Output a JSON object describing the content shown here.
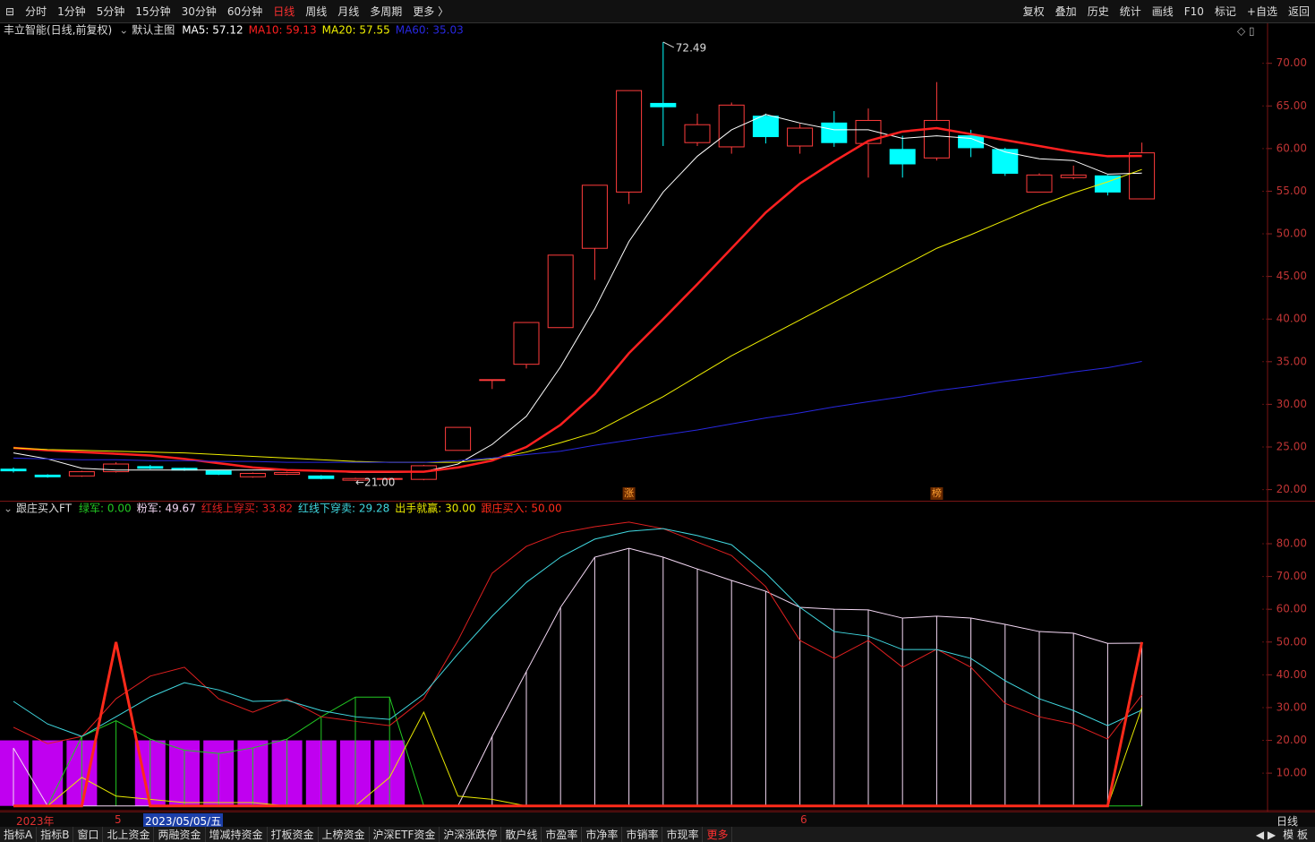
{
  "toolbar": {
    "periods": [
      "分时",
      "1分钟",
      "5分钟",
      "15分钟",
      "30分钟",
      "60分钟",
      "日线",
      "周线",
      "月线",
      "多周期",
      "更多 〉"
    ],
    "tools": [
      "复权",
      "叠加",
      "历史",
      "统计",
      "画线",
      "F10",
      "标记",
      "+自选",
      "返回"
    ]
  },
  "chart_data": [
    {
      "type": "candlestick",
      "title": "丰立智能(日线,前复权)",
      "subtitle": "默认主图",
      "up_color": "#ff3c3c",
      "down_color": "#00ffff",
      "open": [
        22.4,
        21.7,
        21.6,
        22.1,
        22.7,
        22.5,
        22.2,
        21.5,
        21.8,
        21.6,
        21.1,
        21.2,
        21.2,
        24.6,
        32.9,
        34.7,
        39.0,
        48.3,
        54.9,
        65.3,
        60.7,
        60.2,
        63.8,
        60.3,
        63.0,
        60.6,
        59.9,
        58.9,
        61.5,
        59.9,
        54.9,
        56.6,
        56.8,
        54.1
      ],
      "close": [
        22.2,
        21.5,
        22.1,
        23.0,
        22.5,
        22.3,
        21.8,
        21.9,
        22.0,
        21.3,
        21.3,
        21.3,
        22.8,
        27.3,
        32.9,
        39.6,
        47.5,
        55.7,
        66.8,
        64.9,
        62.8,
        65.1,
        61.4,
        62.4,
        60.7,
        63.3,
        58.2,
        63.3,
        60.1,
        57.1,
        56.9,
        56.9,
        54.9,
        59.5
      ],
      "high": [
        22.6,
        21.8,
        22.2,
        23.2,
        22.9,
        22.6,
        22.3,
        22.0,
        22.1,
        21.7,
        21.4,
        21.4,
        22.9,
        27.3,
        32.9,
        39.6,
        47.5,
        55.7,
        66.8,
        72.49,
        64.1,
        65.4,
        64.1,
        62.9,
        64.4,
        64.7,
        61.5,
        67.8,
        62.2,
        60.1,
        57.1,
        58.0,
        56.9,
        60.7
      ],
      "low": [
        22.0,
        21.4,
        21.5,
        22.0,
        22.4,
        22.2,
        21.7,
        21.4,
        21.7,
        21.2,
        21.0,
        21.1,
        21.1,
        24.6,
        31.8,
        34.2,
        39.0,
        44.6,
        53.5,
        60.3,
        60.3,
        59.4,
        60.6,
        59.4,
        60.2,
        56.6,
        56.6,
        58.6,
        59.0,
        56.8,
        54.9,
        56.4,
        54.5,
        54.1
      ],
      "series": [
        {
          "name": "MA5: 57.12",
          "color": "#ffffff",
          "width": 1,
          "values": [
            24.3,
            23.6,
            22.5,
            22.3,
            22.3,
            22.3,
            22.3,
            22.3,
            22.3,
            22.2,
            22.0,
            22.0,
            22.1,
            23.0,
            25.3,
            28.6,
            34.4,
            41.2,
            49.1,
            54.9,
            59.1,
            62.2,
            64.0,
            63.0,
            62.2,
            62.2,
            61.2,
            61.5,
            61.2,
            59.6,
            58.8,
            58.6,
            57.0,
            57.12
          ]
        },
        {
          "name": "MA10: 59.13",
          "color": "#ff2020",
          "width": 2.5,
          "values": [
            24.9,
            24.6,
            24.4,
            24.2,
            24.0,
            23.6,
            23.1,
            22.6,
            22.3,
            22.2,
            22.1,
            22.1,
            22.1,
            22.6,
            23.4,
            25.0,
            27.6,
            31.2,
            36.0,
            40.0,
            44.1,
            48.3,
            52.5,
            55.9,
            58.5,
            60.9,
            62.0,
            62.4,
            61.7,
            61.0,
            60.3,
            59.6,
            59.1,
            59.13
          ]
        },
        {
          "name": "MA20: 57.55",
          "color": "#f0f000",
          "width": 1,
          "values": [
            24.9,
            24.7,
            24.6,
            24.5,
            24.4,
            24.3,
            24.1,
            23.9,
            23.7,
            23.5,
            23.3,
            23.2,
            23.2,
            23.2,
            23.6,
            24.4,
            25.5,
            26.7,
            28.8,
            30.9,
            33.3,
            35.7,
            37.8,
            39.9,
            42.0,
            44.1,
            46.2,
            48.3,
            49.9,
            51.6,
            53.3,
            54.8,
            56.1,
            57.55
          ]
        },
        {
          "name": "MA60: 35.03",
          "color": "#2828e0",
          "width": 1,
          "values": [
            23.7,
            23.6,
            23.5,
            23.5,
            23.4,
            23.4,
            23.3,
            23.3,
            23.2,
            23.2,
            23.2,
            23.2,
            23.2,
            23.4,
            23.7,
            24.1,
            24.5,
            25.2,
            25.8,
            26.4,
            27.0,
            27.7,
            28.4,
            29.0,
            29.7,
            30.3,
            30.9,
            31.6,
            32.1,
            32.7,
            33.2,
            33.8,
            34.3,
            35.03
          ]
        }
      ],
      "max_label": "72.49",
      "min_label": "←21.00",
      "flags": [
        "涨",
        "榜"
      ],
      "ylim": [
        18.8,
        74.8
      ],
      "yticks": [
        {
          "value": 20,
          "label": "20.00"
        },
        {
          "value": 25,
          "label": "25.00"
        },
        {
          "value": 30,
          "label": "30.00"
        },
        {
          "value": 35,
          "label": "35.00"
        },
        {
          "value": 40,
          "label": "40.00"
        },
        {
          "value": 45,
          "label": "45.00"
        },
        {
          "value": 50,
          "label": "50.00"
        },
        {
          "value": 55,
          "label": "55.00"
        },
        {
          "value": 60,
          "label": "60.00"
        },
        {
          "value": 65,
          "label": "65.00"
        },
        {
          "value": 70,
          "label": "70.00"
        }
      ]
    },
    {
      "type": "indicator",
      "title": "跟庄买入FT",
      "series": [
        {
          "color": "#c000f0",
          "bars": true,
          "values": [
            20,
            20,
            20,
            null,
            20,
            20,
            20,
            20,
            20,
            20,
            20,
            20,
            null,
            null,
            null,
            null,
            null,
            null,
            null,
            null,
            null,
            null,
            null,
            null,
            null,
            null,
            null,
            null,
            null,
            null,
            null,
            null,
            null,
            null
          ]
        },
        {
          "name": "绿军: 0.00",
          "color": "#22c822",
          "width": 1,
          "sticks": true,
          "values": [
            0,
            0,
            21.2,
            26.0,
            20.4,
            17.0,
            16.0,
            17.7,
            20.4,
            27.2,
            33.2,
            33.2,
            0,
            0,
            0,
            0,
            0,
            0,
            0,
            0,
            0,
            0,
            0,
            0,
            0,
            0,
            0,
            0,
            0,
            0,
            0,
            0,
            0,
            0
          ]
        },
        {
          "name": "粉军: 49.67",
          "color": "#f4d8f4",
          "width": 1,
          "sticks": true,
          "values": [
            17.7,
            0,
            0,
            0,
            0,
            0,
            0,
            0,
            0,
            0,
            0,
            0,
            0,
            0,
            21.2,
            41.0,
            60.6,
            75.9,
            78.6,
            75.9,
            72.3,
            68.8,
            65.5,
            60.6,
            60.0,
            59.8,
            57.3,
            57.9,
            57.3,
            55.4,
            53.2,
            52.7,
            49.6,
            49.67
          ]
        },
        {
          "name": "红线上穿买: 33.82",
          "color": "#e02020",
          "width": 1,
          "values": [
            24.0,
            19.0,
            21.2,
            32.7,
            39.6,
            42.3,
            32.7,
            28.6,
            32.7,
            27.2,
            25.8,
            24.5,
            32.7,
            50.5,
            71.0,
            79.2,
            83.3,
            85.2,
            86.6,
            84.6,
            80.5,
            76.4,
            66.9,
            50.5,
            45.0,
            50.5,
            42.3,
            47.8,
            42.3,
            31.3,
            27.2,
            25.0,
            20.4,
            33.82
          ]
        },
        {
          "name": "红线下穿卖: 29.28",
          "color": "#40d8e0",
          "width": 1,
          "values": [
            31.9,
            25.0,
            21.2,
            27.2,
            33.2,
            37.6,
            35.4,
            31.9,
            32.2,
            29.1,
            27.2,
            26.4,
            34.1,
            46.4,
            57.9,
            68.2,
            75.9,
            81.4,
            83.8,
            84.6,
            82.5,
            79.7,
            71.0,
            60.6,
            53.2,
            51.8,
            47.7,
            47.7,
            45.0,
            38.2,
            32.7,
            29.1,
            24.5,
            29.28
          ]
        },
        {
          "name": "出手就赢: 30.00",
          "color": "#e8e800",
          "width": 1,
          "values": [
            0,
            0,
            8.7,
            3.0,
            2.0,
            1.0,
            1.0,
            1.0,
            0,
            0,
            0,
            8.7,
            28.6,
            3.0,
            2.0,
            0,
            0,
            0,
            0,
            0,
            0,
            0,
            0,
            0,
            0,
            0,
            0,
            0,
            0,
            0,
            0,
            0,
            0,
            30.0
          ]
        },
        {
          "name": "跟庄买入: 50.00",
          "color": "#ff2a1a",
          "width": 3,
          "values": [
            0,
            0,
            0,
            50,
            0,
            0,
            0,
            0,
            0,
            0,
            0,
            0,
            0,
            0,
            0,
            0,
            0,
            0,
            0,
            0,
            0,
            0,
            0,
            0,
            0,
            0,
            0,
            0,
            0,
            0,
            0,
            0,
            0,
            50
          ]
        }
      ],
      "ylim": [
        -0.9,
        92.3
      ],
      "yticks": [
        {
          "value": 10,
          "label": "10.00"
        },
        {
          "value": 20,
          "label": "20.00"
        },
        {
          "value": 30,
          "label": "30.00"
        },
        {
          "value": 40,
          "label": "40.00"
        },
        {
          "value": 50,
          "label": "50.00"
        },
        {
          "value": 60,
          "label": "60.00"
        },
        {
          "value": 70,
          "label": "70.00"
        },
        {
          "value": 80,
          "label": "80.00"
        }
      ]
    }
  ],
  "date_axis": {
    "labels": [
      "2023年",
      "5",
      "2023/05/05/五",
      "6"
    ],
    "period": "日线"
  },
  "bottom_tabs": {
    "tabs": [
      "指标A",
      "指标B",
      "窗口",
      "北上资金",
      "两融资金",
      "增减持资金",
      "打板资金",
      "上榜资金",
      "沪深ETF资金",
      "沪深涨跌停",
      "散户线",
      "市盈率",
      "市净率",
      "市销率",
      "市现率",
      "更多"
    ],
    "right": "模 板"
  }
}
